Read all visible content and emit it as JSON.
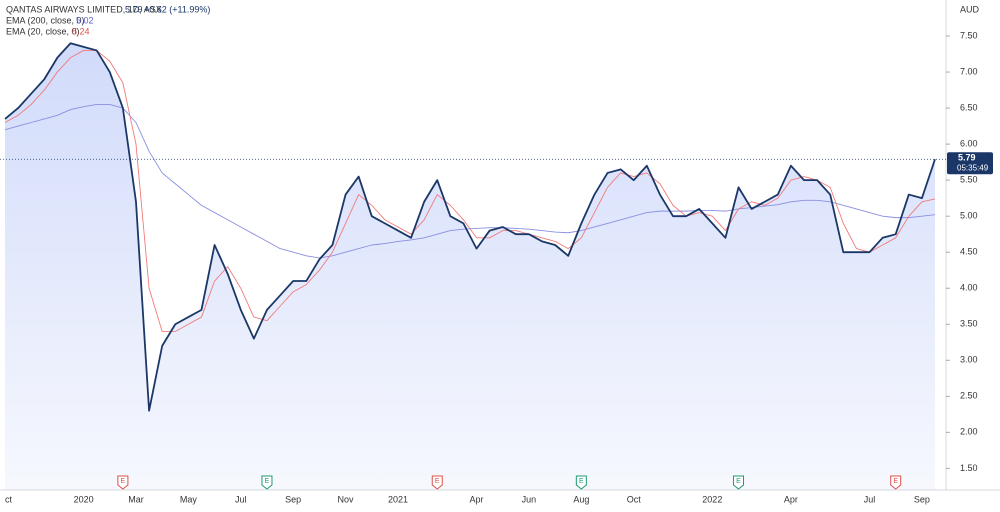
{
  "chart_data": {
    "type": "line",
    "title": "QANTAS AIRWAYS LIMITED, 1D, ASX",
    "last": 5.79,
    "change": "+0.62 (+11.99%)",
    "countdown": "05:35:49",
    "currency": "AUD",
    "indicators": [
      {
        "label": "EMA (200, close, 0)",
        "value": 5.02
      },
      {
        "label": "EMA (20, close, 0)",
        "value": 5.24
      }
    ],
    "categories": [
      "ct",
      null,
      null,
      null,
      null,
      null,
      "2020",
      null,
      null,
      null,
      "Mar",
      null,
      null,
      null,
      "May",
      null,
      null,
      null,
      "Jul",
      null,
      null,
      null,
      "Sep",
      null,
      null,
      null,
      "Nov",
      null,
      null,
      null,
      "2021",
      null,
      null,
      null,
      null,
      null,
      "Apr",
      null,
      null,
      null,
      "Jun",
      null,
      null,
      null,
      "Aug",
      null,
      null,
      null,
      "Oct",
      null,
      null,
      null,
      null,
      null,
      "2022",
      null,
      null,
      null,
      null,
      null,
      "Apr",
      null,
      null,
      null,
      null,
      null,
      "Jul",
      null,
      null,
      null,
      "Sep",
      null
    ],
    "series": [
      {
        "name": "QANTAS AIRWAYS LIMITED",
        "color": "#1b3768",
        "values": [
          6.35,
          6.5,
          6.7,
          6.9,
          7.2,
          7.4,
          7.35,
          7.3,
          7.0,
          6.5,
          5.2,
          2.3,
          3.2,
          3.5,
          3.6,
          3.7,
          4.6,
          4.2,
          3.7,
          3.3,
          3.7,
          3.9,
          4.1,
          4.1,
          4.4,
          4.6,
          5.3,
          5.55,
          5.0,
          4.9,
          4.8,
          4.7,
          5.2,
          5.5,
          5.0,
          4.9,
          4.55,
          4.8,
          4.85,
          4.75,
          4.75,
          4.65,
          4.6,
          4.45,
          4.9,
          5.3,
          5.6,
          5.65,
          5.5,
          5.7,
          5.3,
          5.0,
          5.0,
          5.1,
          4.9,
          4.7,
          5.4,
          5.1,
          5.2,
          5.3,
          5.7,
          5.5,
          5.5,
          5.3,
          4.5,
          4.5,
          4.5,
          4.7,
          4.75,
          5.3,
          5.25,
          5.79
        ]
      },
      {
        "name": "EMA (200, close, 0)",
        "color": "#8a8fe0",
        "values": [
          6.2,
          6.25,
          6.3,
          6.35,
          6.4,
          6.48,
          6.52,
          6.55,
          6.55,
          6.5,
          6.3,
          5.9,
          5.6,
          5.45,
          5.3,
          5.15,
          5.05,
          4.95,
          4.85,
          4.75,
          4.65,
          4.55,
          4.5,
          4.45,
          4.42,
          4.45,
          4.5,
          4.55,
          4.6,
          4.62,
          4.65,
          4.67,
          4.7,
          4.75,
          4.8,
          4.82,
          4.83,
          4.84,
          4.84,
          4.83,
          4.82,
          4.8,
          4.78,
          4.77,
          4.8,
          4.85,
          4.9,
          4.95,
          5.0,
          5.05,
          5.07,
          5.07,
          5.07,
          5.08,
          5.08,
          5.07,
          5.1,
          5.12,
          5.14,
          5.16,
          5.2,
          5.22,
          5.22,
          5.2,
          5.15,
          5.1,
          5.05,
          5.0,
          4.98,
          4.98,
          5.0,
          5.02
        ]
      },
      {
        "name": "EMA (20, close, 0)",
        "color": "#f07a7a",
        "values": [
          6.3,
          6.4,
          6.55,
          6.75,
          7.0,
          7.2,
          7.3,
          7.3,
          7.15,
          6.85,
          6.0,
          4.0,
          3.4,
          3.4,
          3.5,
          3.6,
          4.1,
          4.3,
          4.0,
          3.6,
          3.55,
          3.75,
          3.95,
          4.05,
          4.25,
          4.5,
          4.9,
          5.3,
          5.15,
          4.95,
          4.85,
          4.75,
          4.95,
          5.3,
          5.15,
          4.95,
          4.7,
          4.7,
          4.8,
          4.8,
          4.75,
          4.7,
          4.65,
          4.55,
          4.7,
          5.05,
          5.4,
          5.6,
          5.55,
          5.6,
          5.45,
          5.15,
          5.0,
          5.05,
          5.0,
          4.8,
          5.1,
          5.2,
          5.15,
          5.25,
          5.5,
          5.55,
          5.5,
          5.4,
          4.9,
          4.55,
          4.5,
          4.6,
          4.7,
          5.0,
          5.2,
          5.24
        ]
      }
    ],
    "events": [
      {
        "label": "E",
        "index": 9,
        "color": "#e0504a"
      },
      {
        "label": "E",
        "index": 20,
        "color": "#1e9a73"
      },
      {
        "label": "E",
        "index": 33,
        "color": "#e0504a"
      },
      {
        "label": "E",
        "index": 44,
        "color": "#1e9a73"
      },
      {
        "label": "E",
        "index": 56,
        "color": "#1e9a73"
      },
      {
        "label": "E",
        "index": 68,
        "color": "#e0504a"
      }
    ],
    "ylim": [
      1.2,
      8.0
    ],
    "yticks": [
      {
        "value": 1.5,
        "label": "1.50"
      },
      {
        "value": 2,
        "label": "2.00"
      },
      {
        "value": 2.5,
        "label": "2.50"
      },
      {
        "value": 3,
        "label": "3.00"
      },
      {
        "value": 3.5,
        "label": "3.50"
      },
      {
        "value": 4,
        "label": "4.00"
      },
      {
        "value": 4.5,
        "label": "4.50"
      },
      {
        "value": 5,
        "label": "5.00"
      },
      {
        "value": 5.5,
        "label": "5.50"
      },
      {
        "value": 6,
        "label": "6.00"
      },
      {
        "value": 6.5,
        "label": "6.50"
      },
      {
        "value": 7,
        "label": "7.00"
      },
      {
        "value": 7.5,
        "label": "7.50"
      }
    ]
  }
}
